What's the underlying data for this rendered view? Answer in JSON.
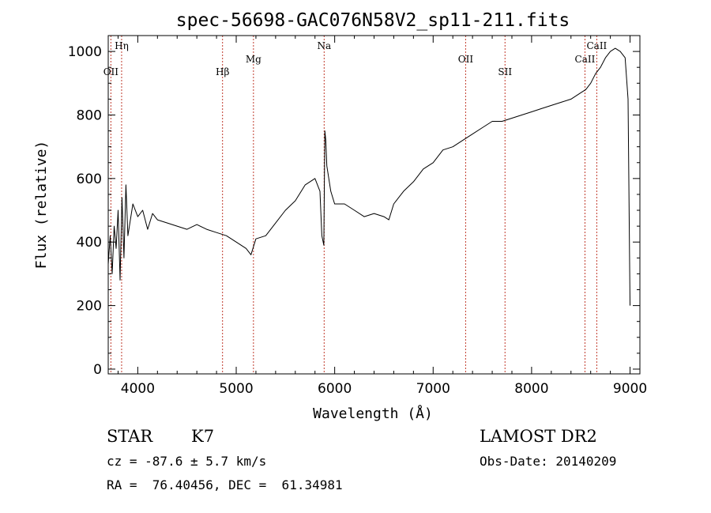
{
  "chart_data": {
    "type": "line",
    "title": "spec-56698-GAC076N58V2_sp11-211.fits",
    "xlabel": "Wavelength (Å)",
    "ylabel": "Flux (relative)",
    "xlim": [
      3700,
      9100
    ],
    "ylim": [
      -15,
      1050
    ],
    "xticks": [
      4000,
      5000,
      6000,
      7000,
      8000,
      9000
    ],
    "yticks": [
      0,
      200,
      400,
      600,
      800,
      1000
    ],
    "xtick_labels": [
      "4000",
      "5000",
      "6000",
      "7000",
      "8000",
      "9000"
    ],
    "ytick_labels": [
      "0",
      "200",
      "400",
      "600",
      "800",
      "1000"
    ],
    "series": [
      {
        "x": [
          3700,
          3720,
          3740,
          3760,
          3780,
          3800,
          3820,
          3840,
          3860,
          3880,
          3900,
          3950,
          4000,
          4050,
          4100,
          4150,
          4200,
          4300,
          4400,
          4500,
          4600,
          4700,
          4800,
          4900,
          5000,
          5100,
          5150,
          5200,
          5300,
          5400,
          5500,
          5600,
          5700,
          5800,
          5850,
          5870,
          5890,
          5900,
          5910,
          5920,
          5940,
          5960,
          6000,
          6100,
          6200,
          6300,
          6400,
          6500,
          6550,
          6600,
          6700,
          6800,
          6900,
          7000,
          7100,
          7200,
          7300,
          7400,
          7500,
          7600,
          7700,
          7800,
          7900,
          8000,
          8100,
          8200,
          8300,
          8400,
          8500,
          8550,
          8600,
          8650,
          8700,
          8750,
          8800,
          8850,
          8900,
          8950,
          8980,
          9000
        ],
        "y": [
          330,
          420,
          300,
          450,
          380,
          500,
          280,
          540,
          350,
          580,
          420,
          520,
          480,
          500,
          440,
          490,
          470,
          460,
          450,
          440,
          455,
          440,
          430,
          420,
          400,
          380,
          360,
          410,
          420,
          460,
          500,
          530,
          580,
          600,
          560,
          420,
          390,
          750,
          720,
          640,
          600,
          560,
          520,
          520,
          500,
          480,
          490,
          480,
          470,
          520,
          560,
          590,
          630,
          650,
          690,
          700,
          720,
          740,
          760,
          780,
          780,
          790,
          800,
          810,
          820,
          830,
          840,
          850,
          870,
          880,
          900,
          930,
          950,
          980,
          1000,
          1010,
          1000,
          980,
          850,
          200
        ]
      }
    ],
    "line_markers": [
      {
        "label": "OII",
        "x": 3727,
        "level": "low"
      },
      {
        "label": "Hη",
        "x": 3836,
        "level": "high"
      },
      {
        "label": "Hβ",
        "x": 4861,
        "level": "low"
      },
      {
        "label": "Mg",
        "x": 5175,
        "level": "mid"
      },
      {
        "label": "Na",
        "x": 5893,
        "level": "high"
      },
      {
        "label": "OII",
        "x": 7330,
        "level": "mid"
      },
      {
        "label": "SII",
        "x": 7730,
        "level": "low"
      },
      {
        "label": "CaII",
        "x": 8542,
        "level": "mid"
      },
      {
        "label": "CaII",
        "x": 8662,
        "level": "high"
      }
    ],
    "grid": false,
    "legend": "none"
  },
  "info": {
    "object_class": "STAR",
    "subclass": "K7",
    "survey": "LAMOST DR2",
    "cz": "cz = -87.6 ± 5.7 km/s",
    "obs_date": "Obs-Date: 20140209",
    "coords": "RA =  76.40456, DEC =  61.34981"
  },
  "colors": {
    "spectrum": "#000000",
    "marker_lines": "#c0392b",
    "axes": "#000000"
  }
}
